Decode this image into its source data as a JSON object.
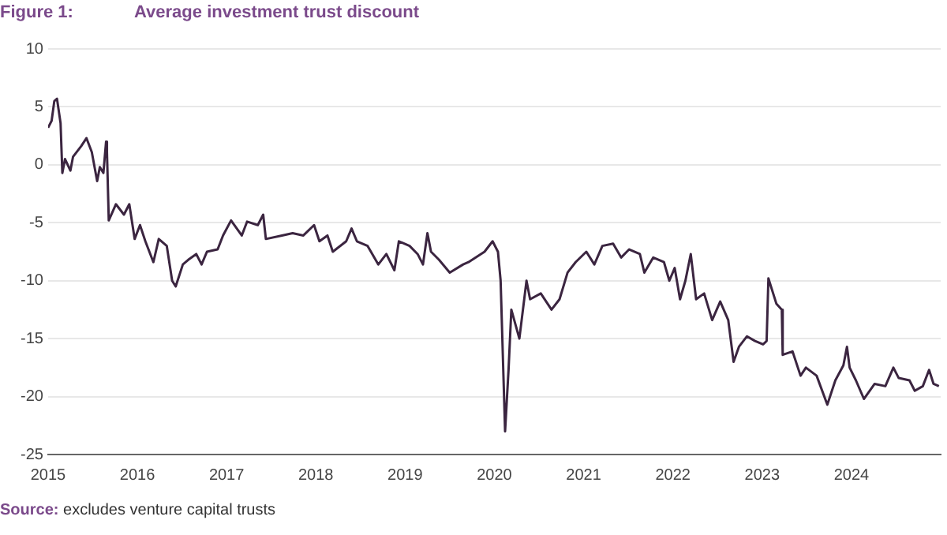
{
  "chart_data": {
    "type": "line",
    "title": "Average investment trust discount",
    "annotations": [
      "Figure 1:",
      "Source: excludes venture capital trusts"
    ],
    "xlim": [
      2015,
      2025
    ],
    "xticks": [
      2015,
      2016,
      2017,
      2018,
      2019,
      2020,
      2021,
      2022,
      2023,
      2024
    ],
    "ylim": [
      -25,
      10
    ],
    "yticks": [
      -25,
      -20,
      -15,
      -10,
      -5,
      0,
      5,
      10
    ],
    "grid": "y",
    "legend": false,
    "marker": "none",
    "line_style": "solid",
    "series": [
      {
        "color": "#3b2540",
        "x": [
          2015.0,
          2015.04,
          2015.07,
          2015.1,
          2015.14,
          2015.16,
          2015.19,
          2015.25,
          2015.28,
          2015.37,
          2015.43,
          2015.49,
          2015.55,
          2015.58,
          2015.62,
          2015.65,
          2015.66,
          2015.68,
          2015.76,
          2015.85,
          2015.91,
          2015.97,
          2016.03,
          2016.09,
          2016.18,
          2016.24,
          2016.33,
          2016.39,
          2016.43,
          2016.51,
          2016.57,
          2016.66,
          2016.72,
          2016.78,
          2016.9,
          2016.96,
          2017.05,
          2017.17,
          2017.23,
          2017.35,
          2017.41,
          2017.44,
          2017.62,
          2017.74,
          2017.86,
          2017.98,
          2018.04,
          2018.13,
          2018.19,
          2018.34,
          2018.4,
          2018.46,
          2018.58,
          2018.7,
          2018.79,
          2018.88,
          2018.93,
          2019.05,
          2019.14,
          2019.2,
          2019.25,
          2019.29,
          2019.38,
          2019.5,
          2019.65,
          2019.71,
          2019.89,
          2019.98,
          2020.04,
          2020.07,
          2020.12,
          2020.16,
          2020.19,
          2020.28,
          2020.36,
          2020.4,
          2020.52,
          2020.64,
          2020.73,
          2020.82,
          2020.91,
          2021.03,
          2021.12,
          2021.21,
          2021.33,
          2021.42,
          2021.51,
          2021.63,
          2021.68,
          2021.78,
          2021.9,
          2021.96,
          2022.02,
          2022.08,
          2022.14,
          2022.2,
          2022.26,
          2022.35,
          2022.44,
          2022.53,
          2022.62,
          2022.68,
          2022.74,
          2022.83,
          2022.92,
          2023.01,
          2023.05,
          2023.07,
          2023.16,
          2023.22,
          2023.23,
          2023.34,
          2023.43,
          2023.49,
          2023.61,
          2023.73,
          2023.82,
          2023.91,
          2023.95,
          2023.98,
          2024.05,
          2024.14,
          2024.26,
          2024.38,
          2024.47,
          2024.53,
          2024.65,
          2024.71,
          2024.8,
          2024.87,
          2024.92,
          2024.98
        ],
        "values": [
          3.2,
          3.8,
          5.5,
          5.7,
          3.6,
          -0.7,
          0.5,
          -0.5,
          0.7,
          1.6,
          2.3,
          1.1,
          -1.4,
          -0.2,
          -0.7,
          2.0,
          1.1,
          -4.8,
          -3.4,
          -4.3,
          -3.4,
          -6.4,
          -5.2,
          -6.6,
          -8.4,
          -6.4,
          -7.0,
          -10.0,
          -10.5,
          -8.6,
          -8.2,
          -7.7,
          -8.6,
          -7.5,
          -7.3,
          -6.1,
          -4.8,
          -6.1,
          -4.9,
          -5.2,
          -4.3,
          -6.4,
          -6.1,
          -5.9,
          -6.1,
          -5.2,
          -6.6,
          -6.1,
          -7.5,
          -6.6,
          -5.5,
          -6.6,
          -7.0,
          -8.6,
          -7.7,
          -9.1,
          -6.6,
          -7.0,
          -7.7,
          -8.6,
          -5.9,
          -7.5,
          -8.2,
          -9.3,
          -8.6,
          -8.4,
          -7.5,
          -6.6,
          -7.5,
          -10.0,
          -23.0,
          -17.5,
          -12.5,
          -15.0,
          -10.0,
          -11.6,
          -11.1,
          -12.5,
          -11.6,
          -9.3,
          -8.4,
          -7.5,
          -8.6,
          -7.0,
          -6.8,
          -8.0,
          -7.3,
          -7.7,
          -9.3,
          -8.0,
          -8.4,
          -10.0,
          -8.9,
          -11.6,
          -10.0,
          -7.7,
          -11.6,
          -11.1,
          -13.4,
          -11.8,
          -13.4,
          -17.0,
          -15.7,
          -14.8,
          -15.2,
          -15.5,
          -15.2,
          -9.8,
          -12.0,
          -12.5,
          -16.4,
          -16.1,
          -18.2,
          -17.5,
          -18.2,
          -20.7,
          -18.6,
          -17.3,
          -15.7,
          -17.5,
          -18.6,
          -20.2,
          -18.9,
          -19.1,
          -17.5,
          -18.4,
          -18.6,
          -19.5,
          -19.1,
          -17.7,
          -18.9,
          -19.1
        ]
      }
    ]
  }
}
